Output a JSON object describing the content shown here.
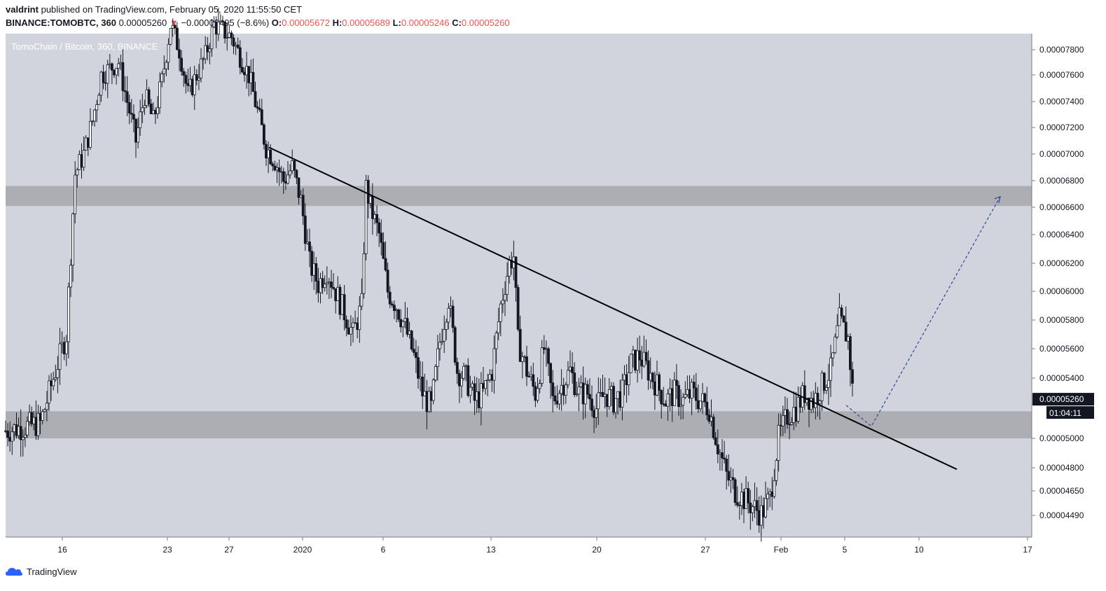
{
  "header": {
    "author": "valdrint",
    "published_text": "published on TradingView.com, February 05, 2020 11:55:50 CET",
    "symbol": "BINANCE:TOMOBTC, 360",
    "last_price": "0.00005260",
    "change": "−0.00000495 (−8.6%)",
    "open_label": "O:",
    "open": "0.00005672",
    "high_label": "H:",
    "high": "0.00005689",
    "low_label": "L:",
    "low": "0.00005246",
    "close_label": "C:",
    "close": "0.00005260",
    "down_color": "#ef5350"
  },
  "footer": {
    "logo_text": "TradingView"
  },
  "chart_data": {
    "type": "candlestick",
    "watermark": "TomoChain / Bitcoin, 360, BINANCE",
    "background": "#d1d4dc",
    "y_axis": {
      "labels": [
        "0.00007800",
        "0.00007600",
        "0.00007400",
        "0.00007200",
        "0.00007000",
        "0.00006800",
        "0.00006600",
        "0.00006400",
        "0.00006200",
        "0.00006000",
        "0.00005800",
        "0.00005600",
        "0.00005400",
        "0.00005000",
        "0.00004800",
        "0.00004650",
        "0.00004490"
      ],
      "last_price_label": "0.00005260",
      "countdown_label": "01:04:11"
    },
    "x_axis": {
      "labels": [
        "16",
        "23",
        "27",
        "2020",
        "6",
        "13",
        "20",
        "27",
        "Feb",
        "5",
        "10",
        "17"
      ]
    },
    "support_zone": {
      "from": 5e-05,
      "to": 5.18e-05
    },
    "resistance_zone": {
      "from": 6.61e-05,
      "to": 6.76e-05
    },
    "trendline": {
      "start": {
        "date": "Dec 29",
        "price": 7.05e-05
      },
      "end": {
        "date": "Feb 12",
        "price": 4.79e-05
      }
    },
    "projection": [
      {
        "date": "Feb 5",
        "price": 5.22e-05
      },
      {
        "date": "Feb 7",
        "price": 5.08e-05
      },
      {
        "date": "Feb 15",
        "price": 6.68e-05
      }
    ],
    "up_color": "#ffffff",
    "down_color": "#131722",
    "close_path": [
      [
        0,
        5.05e-05
      ],
      [
        4,
        5.1e-05
      ],
      [
        7,
        5.7e-05
      ],
      [
        8,
        6.85e-05
      ],
      [
        9,
        7e-05
      ],
      [
        10,
        7.25e-05
      ],
      [
        11,
        7.6e-05
      ],
      [
        13,
        7.7e-05
      ],
      [
        15,
        7.1e-05
      ],
      [
        16,
        7.45e-05
      ],
      [
        17,
        7.25e-05
      ],
      [
        18,
        7.55e-05
      ],
      [
        19,
        8e-05
      ],
      [
        20,
        7.8e-05
      ],
      [
        21,
        7.45e-05
      ],
      [
        22,
        7.6e-05
      ],
      [
        23,
        7.75e-05
      ],
      [
        24,
        8e-05
      ],
      [
        26,
        7.9e-05
      ],
      [
        28,
        7.6e-05
      ],
      [
        30,
        7.05e-05
      ],
      [
        31,
        6.95e-05
      ],
      [
        32,
        6.8e-05
      ],
      [
        33,
        6.9e-05
      ],
      [
        34,
        6.65e-05
      ],
      [
        35,
        6.2e-05
      ],
      [
        36,
        6.05e-05
      ],
      [
        37,
        6.15e-05
      ],
      [
        38,
        6e-05
      ],
      [
        39,
        5.85e-05
      ],
      [
        40,
        5.7e-05
      ],
      [
        41,
        5.9e-05
      ],
      [
        41.5,
        6.75e-05
      ],
      [
        42,
        6.6e-05
      ],
      [
        43,
        6.4e-05
      ],
      [
        44,
        6e-05
      ],
      [
        45,
        5.9e-05
      ],
      [
        46,
        5.75e-05
      ],
      [
        47,
        5.55e-05
      ],
      [
        48,
        5.3e-05
      ],
      [
        49,
        5.2e-05
      ],
      [
        50,
        5.65e-05
      ],
      [
        51,
        5.95e-05
      ],
      [
        52,
        5.45e-05
      ],
      [
        53,
        5.4e-05
      ],
      [
        54,
        5.25e-05
      ],
      [
        55,
        5.3e-05
      ],
      [
        56,
        5.45e-05
      ],
      [
        57,
        5.9e-05
      ],
      [
        58,
        6.2e-05
      ],
      [
        58.5,
        6.25e-05
      ],
      [
        59,
        5.65e-05
      ],
      [
        60,
        5.45e-05
      ],
      [
        61,
        5.3e-05
      ],
      [
        62,
        5.6e-05
      ],
      [
        63,
        5.25e-05
      ],
      [
        64,
        5.35e-05
      ],
      [
        65,
        5.45e-05
      ],
      [
        66,
        5.3e-05
      ],
      [
        67,
        5.3e-05
      ],
      [
        68,
        5.2e-05
      ],
      [
        69,
        5.3e-05
      ],
      [
        70,
        5.25e-05
      ],
      [
        71,
        5.3e-05
      ],
      [
        72,
        5.5e-05
      ],
      [
        73,
        5.55e-05
      ],
      [
        74,
        5.45e-05
      ],
      [
        75,
        5.35e-05
      ],
      [
        76,
        5.25e-05
      ],
      [
        77,
        5.3e-05
      ],
      [
        78,
        5.25e-05
      ],
      [
        79,
        5.3e-05
      ],
      [
        80,
        5.25e-05
      ],
      [
        81,
        5.2e-05
      ],
      [
        82,
        4.95e-05
      ],
      [
        83,
        4.75e-05
      ],
      [
        84,
        4.65e-05
      ],
      [
        85,
        4.6e-05
      ],
      [
        86,
        4.55e-05
      ],
      [
        87,
        4.5e-05
      ],
      [
        88,
        4.6e-05
      ],
      [
        89,
        5e-05
      ],
      [
        90,
        5.15e-05
      ],
      [
        91,
        5.2e-05
      ],
      [
        92,
        5.3e-05
      ],
      [
        93,
        5.25e-05
      ],
      [
        94,
        5.35e-05
      ],
      [
        95,
        5.45e-05
      ],
      [
        96,
        5.8e-05
      ],
      [
        97,
        5.67e-05
      ],
      [
        97.6,
        5.26e-05
      ]
    ]
  }
}
